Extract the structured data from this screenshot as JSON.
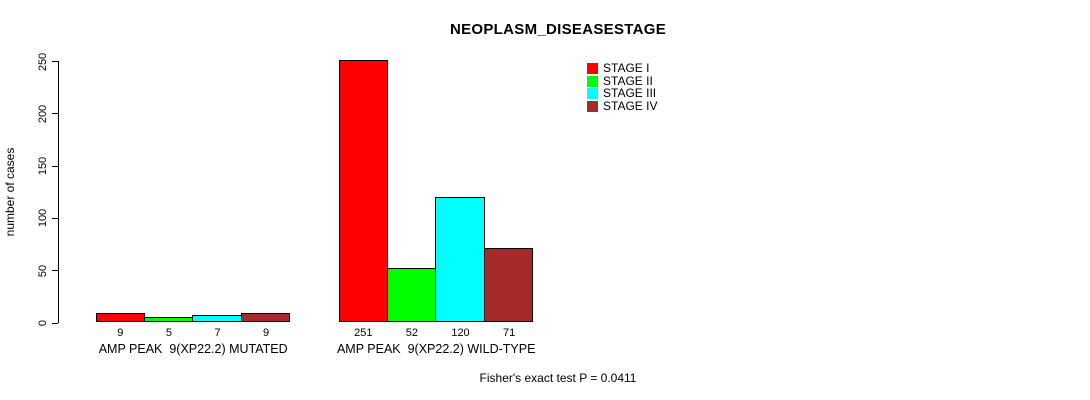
{
  "chart_data": {
    "type": "bar",
    "title": "NEOPLASM_DISEASESTAGE",
    "ylabel": "number of cases",
    "xlabel": "",
    "ylim": [
      0,
      250
    ],
    "yticks": [
      0,
      50,
      100,
      150,
      200,
      250
    ],
    "grid": false,
    "legend_position": "top-right-inside",
    "categories": [
      "AMP PEAK  9(XP22.2) MUTATED",
      "AMP PEAK  9(XP22.2) WILD-TYPE"
    ],
    "series": [
      {
        "name": "STAGE I",
        "color": "#FF0000",
        "values": [
          9,
          251
        ]
      },
      {
        "name": "STAGE II",
        "color": "#00FF00",
        "values": [
          5,
          52
        ]
      },
      {
        "name": "STAGE III",
        "color": "#00FFFF",
        "values": [
          7,
          120
        ]
      },
      {
        "name": "STAGE IV",
        "color": "#A52A2A",
        "values": [
          9,
          71
        ]
      }
    ],
    "bar_value_labels": [
      [
        "9",
        "5",
        "7",
        "9"
      ],
      [
        "251",
        "52",
        "120",
        "71"
      ]
    ]
  },
  "annotation": "Fisher's exact test P = 0.0411",
  "colors": {
    "axis": "#000000",
    "background": "#FFFFFF"
  }
}
